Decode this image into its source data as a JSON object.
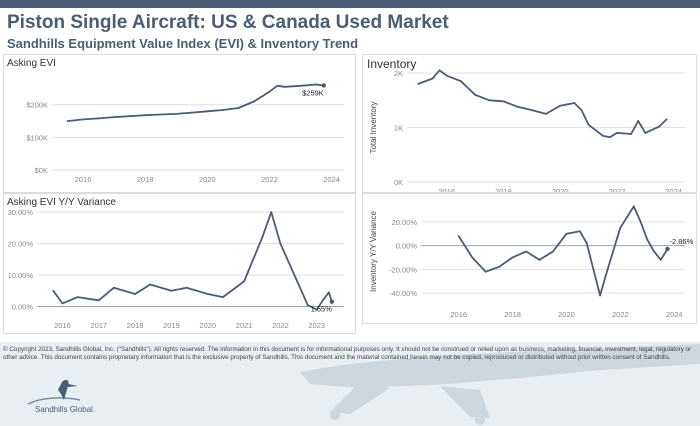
{
  "header": {
    "title": "Piston Single Aircraft:  US & Canada Used Market",
    "subtitle": "Sandhills Equipment Value Index (EVI) & Inventory Trend"
  },
  "colors": {
    "line": "#4a5d75",
    "title": "#4a5d75",
    "axis_text": "#888888",
    "grid": "#e0e0e0",
    "footer_bg": "#e9eef2"
  },
  "chart_data": [
    {
      "id": "asking_evi",
      "type": "line",
      "title": "Asking EVI",
      "x_ticks": [
        "2016",
        "2018",
        "2020",
        "2022",
        "2024"
      ],
      "y_ticks": [
        "$0K",
        "$100K",
        "$200K"
      ],
      "ylim": [
        0,
        285
      ],
      "end_label": "$259K",
      "x": [
        "2015-07",
        "2016-01",
        "2016-07",
        "2017-01",
        "2017-07",
        "2018-01",
        "2018-07",
        "2019-01",
        "2019-07",
        "2020-01",
        "2020-07",
        "2021-01",
        "2021-07",
        "2022-01",
        "2022-04",
        "2022-07",
        "2023-01",
        "2023-07",
        "2023-10"
      ],
      "values": [
        150,
        155,
        158,
        162,
        165,
        168,
        170,
        172,
        176,
        180,
        184,
        190,
        210,
        240,
        258,
        255,
        258,
        262,
        259
      ]
    },
    {
      "id": "inventory",
      "type": "line",
      "title": "Inventory",
      "ylabel": "Total Inventory",
      "x_ticks": [
        "2016",
        "2018",
        "2020",
        "2022",
        "2024"
      ],
      "y_ticks": [
        "0K",
        "1K",
        "2K"
      ],
      "ylim": [
        0,
        2000
      ],
      "x": [
        "2015-01",
        "2015-07",
        "2015-10",
        "2016-01",
        "2016-07",
        "2017-01",
        "2017-07",
        "2018-01",
        "2018-07",
        "2019-01",
        "2019-07",
        "2020-01",
        "2020-07",
        "2020-10",
        "2021-01",
        "2021-07",
        "2021-10",
        "2022-01",
        "2022-07",
        "2022-10",
        "2023-01",
        "2023-07",
        "2023-10"
      ],
      "values": [
        1800,
        1900,
        2050,
        1950,
        1850,
        1600,
        1500,
        1480,
        1380,
        1320,
        1250,
        1400,
        1450,
        1320,
        1050,
        850,
        820,
        900,
        880,
        1120,
        900,
        1020,
        1150
      ]
    },
    {
      "id": "asking_evi_yoy",
      "type": "line",
      "title": "Asking EVI Y/Y Variance",
      "x_ticks": [
        "2016",
        "2017",
        "2018",
        "2019",
        "2020",
        "2021",
        "2022",
        "2023"
      ],
      "y_ticks": [
        "0.00%",
        "10.00%",
        "20.00%",
        "30.00%"
      ],
      "ylim": [
        -3,
        31
      ],
      "end_label": "1.55%",
      "x": [
        "2015-10",
        "2016-01",
        "2016-06",
        "2017-01",
        "2017-06",
        "2018-01",
        "2018-06",
        "2019-01",
        "2019-06",
        "2020-01",
        "2020-06",
        "2021-01",
        "2021-04",
        "2021-07",
        "2021-10",
        "2022-01",
        "2022-07",
        "2022-10",
        "2023-01",
        "2023-03",
        "2023-05",
        "2023-06"
      ],
      "values": [
        5,
        1,
        3,
        2,
        6,
        4,
        7,
        5,
        6,
        4,
        3,
        8,
        15,
        22,
        30,
        20,
        7,
        0.5,
        -1,
        2,
        4.5,
        1.55
      ]
    },
    {
      "id": "inventory_yoy",
      "type": "line",
      "ylabel": "Inventory Y/Y Variance",
      "x_ticks": [
        "2016",
        "2018",
        "2020",
        "2022",
        "2024"
      ],
      "y_ticks": [
        "-40.00%",
        "-20.00%",
        "0.00%",
        "20.00%"
      ],
      "ylim": [
        -45,
        35
      ],
      "end_label": "-2.86%",
      "x": [
        "2016-01",
        "2016-07",
        "2017-01",
        "2017-07",
        "2018-01",
        "2018-07",
        "2019-01",
        "2019-07",
        "2020-01",
        "2020-07",
        "2020-10",
        "2021-01",
        "2021-04",
        "2021-07",
        "2022-01",
        "2022-07",
        "2022-10",
        "2023-01",
        "2023-04",
        "2023-07",
        "2023-10"
      ],
      "values": [
        8,
        -10,
        -22,
        -18,
        -10,
        -5,
        -12,
        -5,
        10,
        12,
        2,
        -20,
        -42,
        -22,
        15,
        33,
        20,
        5,
        -5,
        -12,
        -2.86
      ]
    }
  ],
  "footer": {
    "text": "© Copyright 2023, Sandhills Global, Inc. (\"Sandhills\"). All rights reserved. The information in this document is for informational purposes only.  It should not be construed or relied upon as business, marketing, financial, investment, legal, regulatory or other advice. This document contains proprietary information that is the exclusive property of Sandhills. This document and the material contained herein may not be copied, reproduced or distributed without prior written consent of Sandhills.",
    "logo_text": "Sandhills Global."
  }
}
